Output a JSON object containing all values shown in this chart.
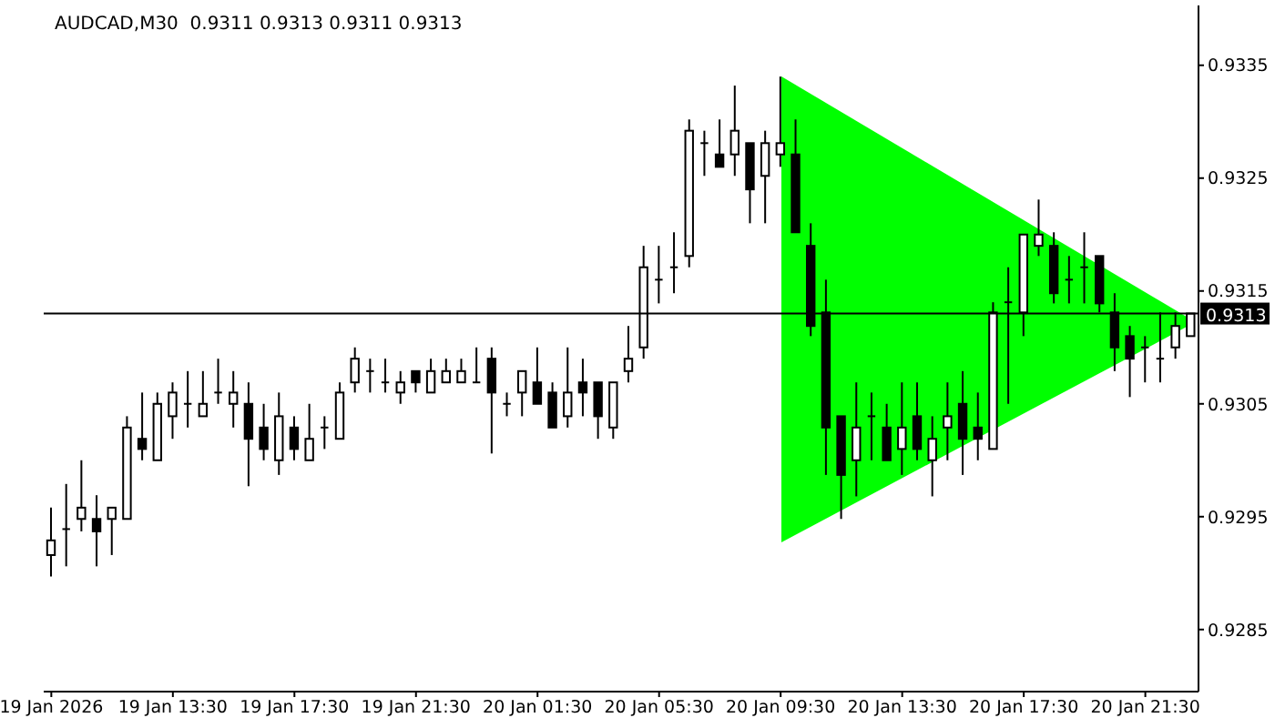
{
  "chart_data": {
    "type": "candlestick",
    "title": "AUDCAD,M30  0.9311 0.9313 0.9311 0.9313",
    "categories": [
      "19 Jan 2026",
      null,
      null,
      null,
      null,
      null,
      null,
      null,
      "19 Jan 13:30",
      null,
      null,
      null,
      null,
      null,
      null,
      null,
      "19 Jan 17:30",
      null,
      null,
      null,
      null,
      null,
      null,
      null,
      "19 Jan 21:30",
      null,
      null,
      null,
      null,
      null,
      null,
      null,
      "20 Jan 01:30",
      null,
      null,
      null,
      null,
      null,
      null,
      null,
      "20 Jan 05:30",
      null,
      null,
      null,
      null,
      null,
      null,
      null,
      "20 Jan 09:30",
      null,
      null,
      null,
      null,
      null,
      null,
      null,
      "20 Jan 13:30",
      null,
      null,
      null,
      null,
      null,
      null,
      null,
      "20 Jan 17:30",
      null,
      null,
      null,
      null,
      null,
      null,
      null,
      "20 Jan 21:30",
      null,
      null,
      null
    ],
    "ohlc": [
      [
        0.92916,
        0.92958,
        0.92897,
        0.92929
      ],
      [
        0.92939,
        0.92979,
        0.92906,
        0.92939
      ],
      [
        0.92948,
        0.93,
        0.92937,
        0.92958
      ],
      [
        0.92948,
        0.92969,
        0.92906,
        0.92937
      ],
      [
        0.92948,
        0.92958,
        0.92916,
        0.92958
      ],
      [
        0.92948,
        0.93039,
        0.92948,
        0.93029
      ],
      [
        0.93019,
        0.9306,
        0.93,
        0.9301
      ],
      [
        0.93,
        0.9306,
        0.93,
        0.9305
      ],
      [
        0.93039,
        0.93069,
        0.93019,
        0.9306
      ],
      [
        0.9305,
        0.93079,
        0.93029,
        0.9305
      ],
      [
        0.93039,
        0.93079,
        0.93039,
        0.9305
      ],
      [
        0.9306,
        0.9309,
        0.9305,
        0.9306
      ],
      [
        0.9305,
        0.93079,
        0.93029,
        0.9306
      ],
      [
        0.9305,
        0.93069,
        0.92977,
        0.93019
      ],
      [
        0.93029,
        0.9305,
        0.93,
        0.9301
      ],
      [
        0.93,
        0.9306,
        0.92987,
        0.93039
      ],
      [
        0.93029,
        0.93039,
        0.93,
        0.9301
      ],
      [
        0.93,
        0.9305,
        0.93,
        0.93019
      ],
      [
        0.93029,
        0.93039,
        0.9301,
        0.93029
      ],
      [
        0.93019,
        0.93069,
        0.93019,
        0.9306
      ],
      [
        0.93069,
        0.931,
        0.9306,
        0.9309
      ],
      [
        0.93079,
        0.9309,
        0.9306,
        0.93079
      ],
      [
        0.93069,
        0.9309,
        0.9306,
        0.93069
      ],
      [
        0.9306,
        0.93079,
        0.9305,
        0.93069
      ],
      [
        0.93079,
        0.93079,
        0.9306,
        0.93069
      ],
      [
        0.9306,
        0.9309,
        0.9306,
        0.93079
      ],
      [
        0.93069,
        0.9309,
        0.93069,
        0.93079
      ],
      [
        0.93069,
        0.9309,
        0.93069,
        0.93079
      ],
      [
        0.93069,
        0.931,
        0.93069,
        0.93069
      ],
      [
        0.9309,
        0.931,
        0.93006,
        0.9306
      ],
      [
        0.9305,
        0.9306,
        0.93039,
        0.9305
      ],
      [
        0.9306,
        0.93079,
        0.93039,
        0.93079
      ],
      [
        0.93069,
        0.931,
        0.9305,
        0.9305
      ],
      [
        0.9306,
        0.93069,
        0.93029,
        0.93029
      ],
      [
        0.93039,
        0.931,
        0.93029,
        0.9306
      ],
      [
        0.93069,
        0.9309,
        0.93039,
        0.9306
      ],
      [
        0.93069,
        0.93069,
        0.93019,
        0.93039
      ],
      [
        0.93029,
        0.93069,
        0.93019,
        0.93069
      ],
      [
        0.93079,
        0.93119,
        0.93069,
        0.9309
      ],
      [
        0.931,
        0.9319,
        0.9309,
        0.93171
      ],
      [
        0.9316,
        0.9319,
        0.93139,
        0.9316
      ],
      [
        0.93171,
        0.93202,
        0.93148,
        0.93171
      ],
      [
        0.93181,
        0.93302,
        0.93171,
        0.93292
      ],
      [
        0.93281,
        0.93292,
        0.93252,
        0.93281
      ],
      [
        0.93271,
        0.93302,
        0.9326,
        0.9326
      ],
      [
        0.93271,
        0.93332,
        0.93252,
        0.93292
      ],
      [
        0.93281,
        0.93281,
        0.9321,
        0.9324
      ],
      [
        0.93252,
        0.93292,
        0.9321,
        0.93281
      ],
      [
        0.93271,
        0.9334,
        0.9326,
        0.93281
      ],
      [
        0.93271,
        0.93302,
        0.93202,
        0.93202
      ],
      [
        0.9319,
        0.9321,
        0.9311,
        0.93119
      ],
      [
        0.93131,
        0.9316,
        0.92987,
        0.93029
      ],
      [
        0.93039,
        0.93039,
        0.92948,
        0.92987
      ],
      [
        0.93,
        0.93069,
        0.92968,
        0.93029
      ],
      [
        0.93039,
        0.9306,
        0.93,
        0.93039
      ],
      [
        0.93029,
        0.9305,
        0.93,
        0.93
      ],
      [
        0.9301,
        0.93069,
        0.92987,
        0.93029
      ],
      [
        0.93039,
        0.93069,
        0.93,
        0.9301
      ],
      [
        0.93,
        0.93039,
        0.92968,
        0.93019
      ],
      [
        0.93029,
        0.93069,
        0.93,
        0.93039
      ],
      [
        0.9305,
        0.93079,
        0.92987,
        0.93019
      ],
      [
        0.93029,
        0.9306,
        0.93,
        0.93019
      ],
      [
        0.9301,
        0.9314,
        0.9301,
        0.93131
      ],
      [
        0.9314,
        0.93171,
        0.9305,
        0.9314
      ],
      [
        0.93131,
        0.932,
        0.9311,
        0.932
      ],
      [
        0.9319,
        0.93231,
        0.93181,
        0.932
      ],
      [
        0.9319,
        0.93202,
        0.93139,
        0.93148
      ],
      [
        0.9316,
        0.93181,
        0.93139,
        0.9316
      ],
      [
        0.93171,
        0.93202,
        0.93139,
        0.93171
      ],
      [
        0.93181,
        0.93181,
        0.93131,
        0.93139
      ],
      [
        0.93131,
        0.93148,
        0.93079,
        0.931
      ],
      [
        0.9311,
        0.93119,
        0.93056,
        0.9309
      ],
      [
        0.931,
        0.9311,
        0.93069,
        0.931
      ],
      [
        0.9309,
        0.93131,
        0.93069,
        0.9309
      ],
      [
        0.931,
        0.93131,
        0.9309,
        0.93119
      ],
      [
        0.9311,
        0.9313,
        0.9311,
        0.9313
      ]
    ],
    "ylim": [
      0.92795,
      0.93403
    ],
    "yticks": [
      0.9285,
      0.9295,
      0.9305,
      0.9315,
      0.9325,
      0.9335
    ],
    "ref_lines": [
      {
        "axis": "y",
        "value": 0.9313,
        "label": "0.9313",
        "color": "#000000"
      }
    ]
  }
}
